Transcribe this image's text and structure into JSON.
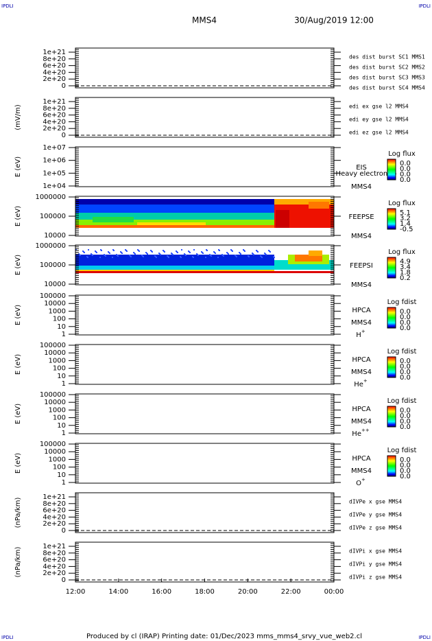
{
  "corner_labels": [
    "IPDLI",
    "IPDLI",
    "IPDLI",
    "IPDLI"
  ],
  "header": {
    "mission": "MMS4",
    "date": "30/Aug/2019 12:00"
  },
  "footer": "Produced by cl (IRAP)   Printing date: 01/Dec/2023   mms_mms4_srvy_vue_web2.cl",
  "xticks": [
    "12:00",
    "14:00",
    "16:00",
    "18:00",
    "20:00",
    "22:00",
    "00:00"
  ],
  "panels": [
    {
      "scale": "linear",
      "yticks": [
        "1e+21",
        "8e+20",
        "6e+20",
        "4e+20",
        "2e+20",
        "0"
      ],
      "legend": [
        {
          "text": "des dist burst SC1 MMS1",
          "color": "#0000cc"
        },
        {
          "text": "des dist burst SC2 MMS2",
          "color": "#dd00dd"
        },
        {
          "text": "des dist burst SC3 MMS3",
          "color": "#dd0000"
        },
        {
          "text": "des dist burst SC4 MMS4",
          "color": "#00bb00"
        }
      ]
    },
    {
      "scale": "linear",
      "ylabel": "(mV/m)",
      "yticks": [
        "1e+21",
        "8e+20",
        "6e+20",
        "4e+20",
        "2e+20",
        "0"
      ],
      "legend": [
        {
          "text": "edi ex gse l2 MMS4",
          "color": "#dd0000"
        },
        {
          "text": "edi ey gse l2 MMS4",
          "color": "#00bb00"
        },
        {
          "text": "edi ez gse l2 MMS4",
          "color": "#0000cc"
        }
      ]
    },
    {
      "scale": "log",
      "ylabel": "E (eV)",
      "yticks": [
        "1e+07",
        "1e+06",
        "1e+05",
        "1e+04"
      ],
      "side": [
        "EIS",
        "Heavy electron to",
        "MMS4"
      ],
      "colorbar": {
        "title": "Log flux",
        "labels": [
          "0.0",
          "0.0",
          "0.0",
          "0.0"
        ]
      }
    },
    {
      "scale": "log",
      "ylabel": "E (eV)",
      "yticks": [
        "1000000",
        "100000",
        "10000"
      ],
      "side": [
        "FEEPSE",
        "MMS4"
      ],
      "colorbar": {
        "title": "Log flux",
        "labels": [
          "5.1",
          "3.2",
          "1.4",
          "-0.5"
        ]
      }
    },
    {
      "scale": "log",
      "ylabel": "E (eV)",
      "yticks": [
        "1000000",
        "100000",
        "10000"
      ],
      "side": [
        "FEEPSI",
        "MMS4"
      ],
      "colorbar": {
        "title": "Log flux",
        "labels": [
          "4.9",
          "3.4",
          "1.8",
          "0.2"
        ]
      }
    },
    {
      "scale": "log",
      "ylabel": "E (eV)",
      "yticks": [
        "100000",
        "10000",
        "1000",
        "100",
        "10",
        "1"
      ],
      "side": [
        "HPCA",
        "MMS4"
      ],
      "species": {
        "base": "H",
        "sup": "+"
      },
      "colorbar": {
        "title": "Log fdist",
        "labels": [
          "0.0",
          "0.0",
          "0.0",
          "0.0"
        ]
      }
    },
    {
      "scale": "log",
      "ylabel": "E (eV)",
      "yticks": [
        "100000",
        "10000",
        "1000",
        "100",
        "10",
        "1"
      ],
      "side": [
        "HPCA",
        "MMS4"
      ],
      "species": {
        "base": "He",
        "sup": "+"
      },
      "colorbar": {
        "title": "Log fdist",
        "labels": [
          "0.0",
          "0.0",
          "0.0",
          "0.0"
        ]
      }
    },
    {
      "scale": "log",
      "ylabel": "E (eV)",
      "yticks": [
        "100000",
        "10000",
        "1000",
        "100",
        "10",
        "1"
      ],
      "side": [
        "HPCA",
        "MMS4"
      ],
      "species": {
        "base": "He",
        "sup": "++"
      },
      "colorbar": {
        "title": "Log fdist",
        "labels": [
          "0.0",
          "0.0",
          "0.0",
          "0.0"
        ]
      }
    },
    {
      "scale": "log",
      "ylabel": "E (eV)",
      "yticks": [
        "100000",
        "10000",
        "1000",
        "100",
        "10",
        "1"
      ],
      "side": [
        "HPCA",
        "MMS4"
      ],
      "species": {
        "base": "O",
        "sup": "+"
      },
      "colorbar": {
        "title": "Log fdist",
        "labels": [
          "0.0",
          "0.0",
          "0.0",
          "0.0"
        ]
      }
    },
    {
      "scale": "linear",
      "ylabel": "(nPa/km)",
      "yticks": [
        "1e+21",
        "8e+20",
        "6e+20",
        "4e+20",
        "2e+20",
        "0"
      ],
      "legend": [
        {
          "text": "dIVPe x gse MMS4",
          "color": "#dd0000"
        },
        {
          "text": "dIVPe y gse MMS4",
          "color": "#00bb00"
        },
        {
          "text": "dIVPe z gse MMS4",
          "color": "#0000cc"
        }
      ]
    },
    {
      "scale": "linear",
      "ylabel": "(nPa/km)",
      "yticks": [
        "1e+21",
        "8e+20",
        "6e+20",
        "4e+20",
        "2e+20",
        "0"
      ],
      "legend": [
        {
          "text": "dIVPi x gse MMS4",
          "color": "#dd0000"
        },
        {
          "text": "dIVPi y gse MMS4",
          "color": "#00bb00"
        },
        {
          "text": "dIVPi z gse MMS4",
          "color": "#0000cc"
        }
      ]
    }
  ]
}
